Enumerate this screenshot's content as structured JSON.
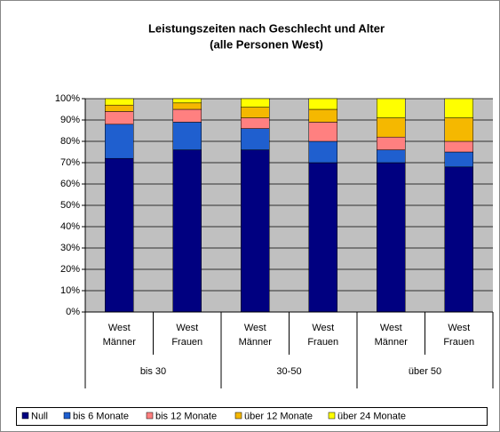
{
  "chart_data": {
    "type": "stacked_bar",
    "title": "Leistungszeiten nach Geschlecht und Alter",
    "subtitle": "(alle Personen West)",
    "categories": [
      [
        "West",
        "Männer"
      ],
      [
        "West",
        "Frauen"
      ],
      [
        "West",
        "Männer"
      ],
      [
        "West",
        "Frauen"
      ],
      [
        "West",
        "Männer"
      ],
      [
        "West",
        "Frauen"
      ]
    ],
    "groups": [
      "bis 30",
      "30-50",
      "über 50"
    ],
    "series": [
      {
        "name": "Null",
        "color": "#000080",
        "values": [
          72,
          76,
          76,
          70,
          70,
          68
        ]
      },
      {
        "name": "bis 6 Monate",
        "color": "#1f5fcf",
        "values": [
          16,
          13,
          10,
          10,
          6,
          7
        ]
      },
      {
        "name": "bis 12 Monate",
        "color": "#ff8080",
        "values": [
          6,
          6,
          5,
          9,
          6,
          5
        ]
      },
      {
        "name": "über 12 Monate",
        "color": "#f5b800",
        "values": [
          3,
          3,
          5,
          6,
          9,
          11
        ]
      },
      {
        "name": "über 24 Monate",
        "color": "#ffff00",
        "values": [
          3,
          2,
          4,
          5,
          9,
          9
        ]
      }
    ],
    "ylim": [
      0,
      100
    ],
    "yticks": [
      {
        "value": 0,
        "label": "0%"
      },
      {
        "value": 10,
        "label": "10%"
      },
      {
        "value": 20,
        "label": "20%"
      },
      {
        "value": 30,
        "label": "30%"
      },
      {
        "value": 40,
        "label": "40%"
      },
      {
        "value": 50,
        "label": "50%"
      },
      {
        "value": 60,
        "label": "60%"
      },
      {
        "value": 70,
        "label": "70%"
      },
      {
        "value": 80,
        "label": "80%"
      },
      {
        "value": 90,
        "label": "90%"
      },
      {
        "value": 100,
        "label": "100%"
      }
    ],
    "grid": true,
    "legend": "bottom"
  }
}
